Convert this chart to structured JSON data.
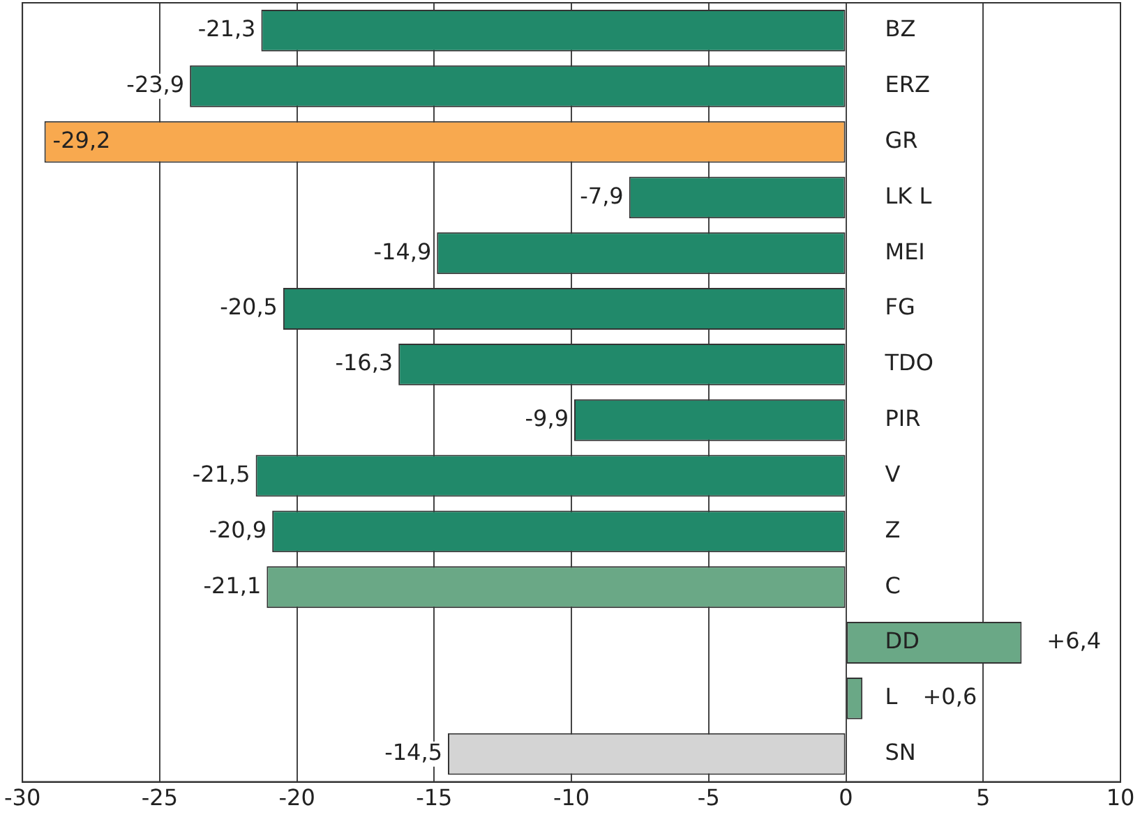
{
  "chart_data": {
    "type": "bar",
    "orientation": "horizontal",
    "categories": [
      "BZ",
      "ERZ",
      "GR",
      "LK L",
      "MEI",
      "FG",
      "TDO",
      "PIR",
      "V",
      "Z",
      "C",
      "DD",
      "L",
      "SN"
    ],
    "values": [
      -21.3,
      -23.9,
      -29.2,
      -7.9,
      -14.9,
      -20.5,
      -16.3,
      -9.9,
      -21.5,
      -20.9,
      -21.1,
      6.4,
      0.6,
      -14.5
    ],
    "colors": [
      "#21896a",
      "#21896a",
      "#f8a94f",
      "#21896a",
      "#21896a",
      "#21896a",
      "#21896a",
      "#21896a",
      "#21896a",
      "#21896a",
      "#6aa886",
      "#6aa886",
      "#6aa886",
      "#d4d4d4"
    ],
    "value_labels": [
      "-21,3",
      "-23,9",
      "-29,2",
      "-7,9",
      "-14,9",
      "-20,5",
      "-16,3",
      "-9,9",
      "-21,5",
      "-20,9",
      "-21,1",
      "+6,4",
      "+0,6",
      "-14,5"
    ],
    "xlim": [
      -30,
      10
    ],
    "xticks": [
      -30,
      -25,
      -20,
      -15,
      -10,
      -5,
      0,
      5,
      10
    ],
    "grid": "x",
    "legend": false
  }
}
